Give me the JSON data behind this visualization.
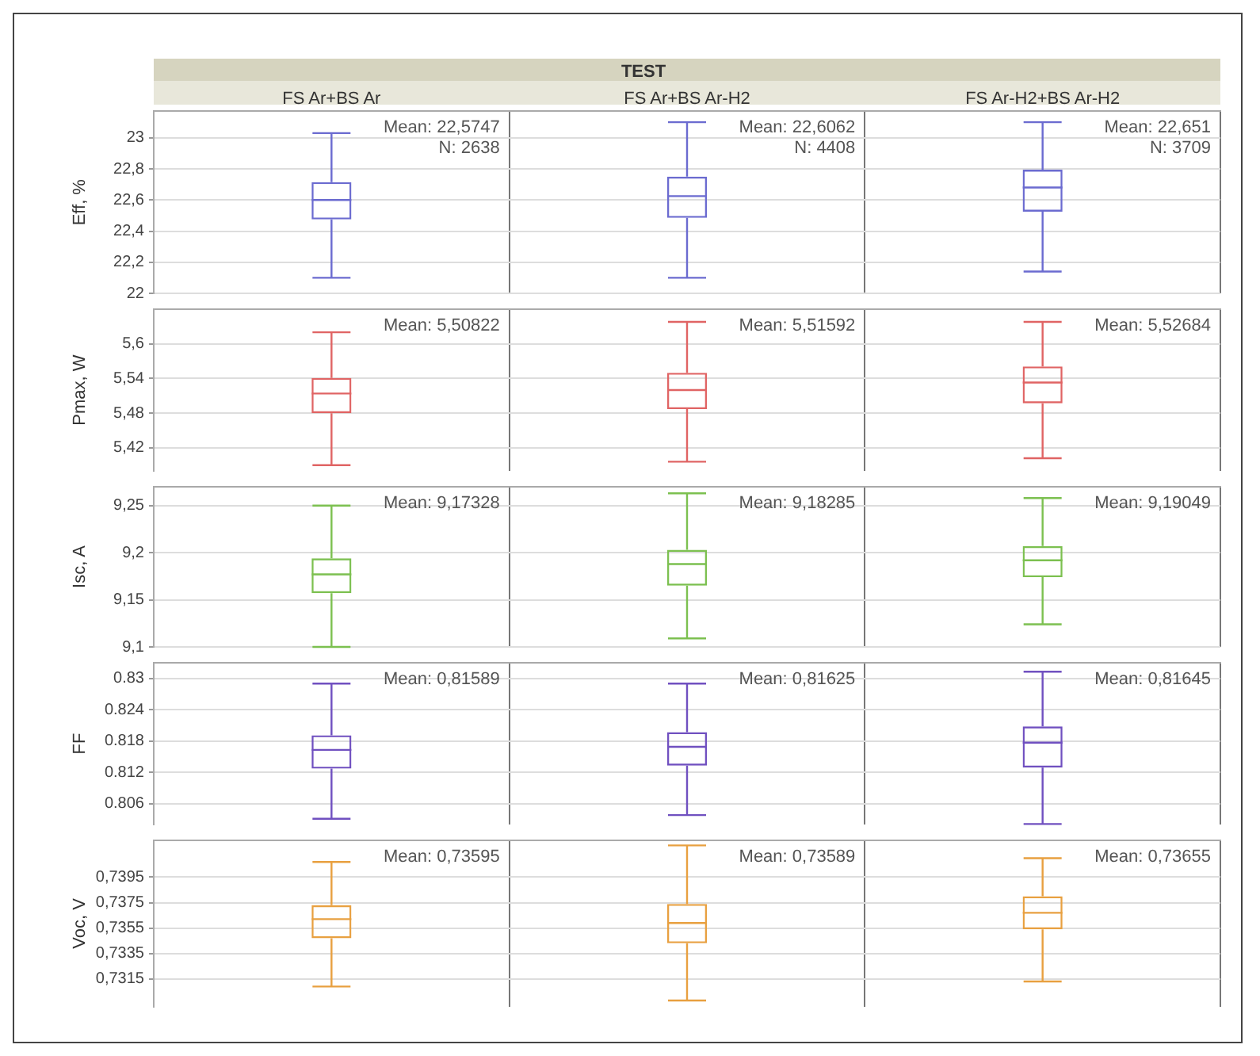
{
  "chart_data": [
    {
      "type": "box",
      "title": "TEST",
      "categories": [
        "FS Ar+BS Ar",
        "FS Ar+BS Ar-H2",
        "FS Ar-H2+BS Ar-H2"
      ],
      "ylabel": "Eff, %",
      "color": "#6b6bd0",
      "ylim": [
        22,
        23.17
      ],
      "yticks": [
        22,
        {
          "value": 22.2,
          "label": "22,2"
        },
        {
          "value": 22.4,
          "label": "22,4"
        },
        {
          "value": 22.6,
          "label": "22,6"
        },
        {
          "value": 22.8,
          "label": "22,8"
        },
        23
      ],
      "grid": true,
      "legend": false,
      "boxes": [
        {
          "low": 22.1,
          "q1": 22.475,
          "median": 22.6,
          "q3": 22.715,
          "high": 23.03
        },
        {
          "low": 22.1,
          "q1": 22.485,
          "median": 22.625,
          "q3": 22.75,
          "high": 23.1
        },
        {
          "low": 22.14,
          "q1": 22.525,
          "median": 22.68,
          "q3": 22.795,
          "high": 23.1
        }
      ],
      "annotations": [
        "Mean: 22,5747",
        "N: 2638",
        "Mean: 22,6062",
        "N: 4408",
        "Mean: 22,651",
        "N: 3709"
      ]
    },
    {
      "type": "box",
      "categories": [
        null,
        null,
        null
      ],
      "tick_labels": "y",
      "ylabel": "Pmax, W",
      "color": "#e06464",
      "ylim": [
        5.38,
        5.66
      ],
      "yticks": [
        {
          "value": 5.42,
          "label": "5,42"
        },
        {
          "value": 5.48,
          "label": "5,48"
        },
        {
          "value": 5.54,
          "label": "5,54"
        },
        {
          "value": 5.6,
          "label": "5,6"
        }
      ],
      "grid": true,
      "legend": false,
      "boxes": [
        {
          "low": 5.39,
          "q1": 5.48,
          "median": 5.514,
          "q3": 5.541,
          "high": 5.62
        },
        {
          "low": 5.396,
          "q1": 5.487,
          "median": 5.52,
          "q3": 5.55,
          "high": 5.638
        },
        {
          "low": 5.402,
          "q1": 5.497,
          "median": 5.533,
          "q3": 5.561,
          "high": 5.638
        }
      ],
      "annotations": [
        "Mean: 5,50822",
        "Mean: 5,51592",
        "Mean: 5,52684"
      ]
    },
    {
      "type": "box",
      "categories": [
        null,
        null,
        null
      ],
      "tick_labels": "y",
      "ylabel": "Isc, A",
      "color": "#7cc050",
      "ylim": [
        9.1,
        9.27
      ],
      "yticks": [
        {
          "value": 9.1,
          "label": "9,1"
        },
        {
          "value": 9.15,
          "label": "9,15"
        },
        {
          "value": 9.2,
          "label": "9,2"
        },
        {
          "value": 9.25,
          "label": "9,25"
        }
      ],
      "grid": true,
      "legend": false,
      "boxes": [
        {
          "low": 9.1,
          "q1": 9.157,
          "median": 9.177,
          "q3": 9.194,
          "high": 9.25
        },
        {
          "low": 9.109,
          "q1": 9.165,
          "median": 9.188,
          "q3": 9.203,
          "high": 9.263
        },
        {
          "low": 9.124,
          "q1": 9.174,
          "median": 9.192,
          "q3": 9.207,
          "high": 9.258
        }
      ],
      "annotations": [
        "Mean: 9,17328",
        "Mean: 9,18285",
        "Mean: 9,19049"
      ]
    },
    {
      "type": "box",
      "categories": [
        null,
        null,
        null
      ],
      "tick_labels": "y",
      "ylabel": "FF",
      "color": "#7050c0",
      "ylim": [
        0.802,
        0.833
      ],
      "yticks": [
        0.806,
        0.812,
        0.818,
        0.824,
        0.83
      ],
      "grid": true,
      "legend": false,
      "boxes": [
        {
          "low": 0.8031,
          "q1": 0.8127,
          "median": 0.8163,
          "q3": 0.8191,
          "high": 0.829
        },
        {
          "low": 0.8038,
          "q1": 0.8133,
          "median": 0.8169,
          "q3": 0.8197,
          "high": 0.829
        },
        {
          "low": 0.8021,
          "q1": 0.8129,
          "median": 0.8177,
          "q3": 0.8208,
          "high": 0.8313
        }
      ],
      "annotations": [
        "Mean: 0,81589",
        "Mean: 0,81625",
        "Mean: 0,81645"
      ]
    },
    {
      "type": "box",
      "categories": [
        null,
        null,
        null
      ],
      "tick_labels": "y",
      "ylabel": "Voc, V",
      "color": "#e8a040",
      "ylim": [
        0.7293,
        0.7424
      ],
      "yticks": [
        {
          "value": 0.7315,
          "label": "0,7315"
        },
        {
          "value": 0.7335,
          "label": "0,7335"
        },
        {
          "value": 0.7355,
          "label": "0,7355"
        },
        {
          "value": 0.7375,
          "label": "0,7375"
        },
        {
          "value": 0.7395,
          "label": "0,7395"
        }
      ],
      "grid": true,
      "legend": false,
      "boxes": [
        {
          "low": 0.7309,
          "q1": 0.7347,
          "median": 0.7362,
          "q3": 0.7373,
          "high": 0.7407
        },
        {
          "low": 0.7298,
          "q1": 0.7343,
          "median": 0.7359,
          "q3": 0.7374,
          "high": 0.742
        },
        {
          "low": 0.7313,
          "q1": 0.7354,
          "median": 0.7367,
          "q3": 0.738,
          "high": 0.741
        }
      ],
      "annotations": [
        "Mean: 0,73595",
        "Mean: 0,73589",
        "Mean: 0,73655"
      ]
    }
  ]
}
